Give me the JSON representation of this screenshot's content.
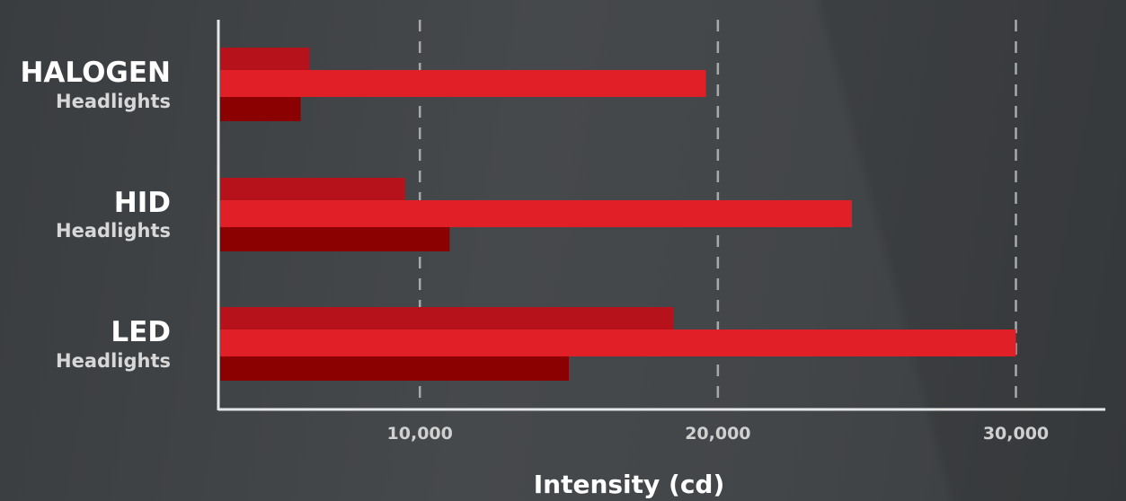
{
  "chart_data": {
    "type": "bar",
    "orientation": "horizontal",
    "categories": [
      {
        "name": "HALOGEN",
        "sub": "Headlights"
      },
      {
        "name": "HID",
        "sub": "Headlights"
      },
      {
        "name": "LED",
        "sub": "Headlights"
      }
    ],
    "series": [
      {
        "values": [
          6300,
          9500,
          18500
        ],
        "color": "#b5121b"
      },
      {
        "values": [
          19600,
          24500,
          30000
        ],
        "color": "#e01f27"
      },
      {
        "values": [
          6000,
          11000,
          15000
        ],
        "color": "#8b0000"
      }
    ],
    "x_ticks": [
      {
        "value": 10000,
        "label": "10,000"
      },
      {
        "value": 20000,
        "label": "20,000"
      },
      {
        "value": 30000,
        "label": "30,000"
      }
    ],
    "xlabel": "Intensity (cd)",
    "ylabel": "",
    "title": "",
    "xlim": [
      3300,
      33000
    ],
    "grid": true,
    "legend": false
  }
}
